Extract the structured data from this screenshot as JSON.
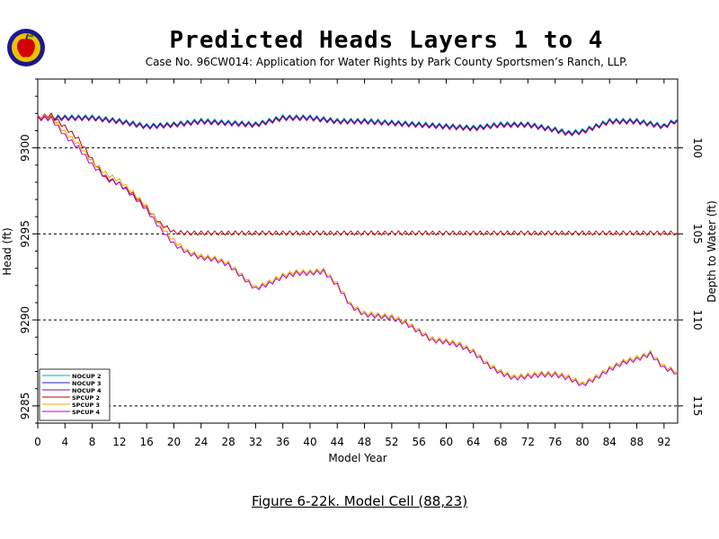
{
  "header": {
    "title": "Predicted Heads Layers 1 to 4",
    "subtitle": "Case No. 96CW014: Application for Water Rights by Park County Sportsmen’s Ranch, LLP."
  },
  "caption": "Figure 6-22k.  Model Cell (88,23)",
  "logo": {
    "icon": "apple-logo-icon",
    "ring_color": "#1a1a8c",
    "fill_color": "#f2c200",
    "apple_color": "#d40000"
  },
  "chart_data": {
    "type": "line",
    "xlabel": "Model Year",
    "ylabel": "Head (ft)",
    "y2label": "Depth to Water (ft)",
    "xlim": [
      0,
      94
    ],
    "ylim": [
      9284,
      9304
    ],
    "xticks": [
      0,
      4,
      8,
      12,
      16,
      20,
      24,
      28,
      32,
      36,
      40,
      44,
      48,
      52,
      56,
      60,
      64,
      68,
      72,
      76,
      80,
      84,
      88,
      92
    ],
    "yticks": [
      9285,
      9290,
      9295,
      9300
    ],
    "y2ticks": [
      {
        "head": 9300,
        "label": "100"
      },
      {
        "head": 9295,
        "label": "105"
      },
      {
        "head": 9290,
        "label": "110"
      },
      {
        "head": 9285,
        "label": "115"
      }
    ],
    "reference_lines": [
      9285,
      9290,
      9295,
      9300
    ],
    "legend_position": "bottom-left",
    "series": [
      {
        "name": "NOCUP 2",
        "color": "#00b0b0",
        "x": [
          0,
          2,
          4,
          8,
          12,
          16,
          20,
          24,
          28,
          32,
          36,
          40,
          44,
          48,
          52,
          56,
          60,
          64,
          68,
          72,
          76,
          78,
          80,
          84,
          88,
          92,
          94
        ],
        "y": [
          9301.8,
          9301.8,
          9301.8,
          9301.8,
          9301.6,
          9301.3,
          9301.4,
          9301.6,
          9301.5,
          9301.4,
          9301.8,
          9301.8,
          9301.6,
          9301.6,
          9301.5,
          9301.4,
          9301.3,
          9301.2,
          9301.4,
          9301.4,
          9301.1,
          9300.9,
          9301.0,
          9301.6,
          9301.6,
          9301.3,
          9301.7
        ]
      },
      {
        "name": "NOCUP 3",
        "color": "#2020c0",
        "x": [
          0,
          2,
          4,
          8,
          12,
          16,
          20,
          24,
          28,
          32,
          36,
          40,
          44,
          48,
          52,
          56,
          60,
          64,
          68,
          72,
          76,
          78,
          80,
          84,
          88,
          92,
          94
        ],
        "y": [
          9301.75,
          9301.75,
          9301.75,
          9301.75,
          9301.55,
          9301.25,
          9301.35,
          9301.55,
          9301.45,
          9301.35,
          9301.75,
          9301.75,
          9301.55,
          9301.55,
          9301.45,
          9301.35,
          9301.25,
          9301.15,
          9301.35,
          9301.35,
          9301.05,
          9300.85,
          9300.95,
          9301.55,
          9301.55,
          9301.25,
          9301.65
        ]
      },
      {
        "name": "NOCUP 4",
        "color": "#a0007a",
        "x": [
          0,
          2,
          4,
          8,
          12,
          16,
          20,
          24,
          28,
          32,
          36,
          40,
          44,
          48,
          52,
          56,
          60,
          64,
          68,
          72,
          76,
          78,
          80,
          84,
          88,
          92,
          94
        ],
        "y": [
          9301.7,
          9301.7,
          9301.7,
          9301.7,
          9301.5,
          9301.2,
          9301.3,
          9301.5,
          9301.4,
          9301.3,
          9301.7,
          9301.7,
          9301.5,
          9301.5,
          9301.4,
          9301.3,
          9301.2,
          9301.1,
          9301.3,
          9301.3,
          9301.0,
          9300.8,
          9300.9,
          9301.5,
          9301.5,
          9301.2,
          9301.6
        ]
      },
      {
        "name": "SPCUP 2",
        "color": "#c00000",
        "x": [
          0,
          2,
          4,
          6,
          8,
          10,
          12,
          14,
          16,
          18,
          20,
          22,
          30,
          40,
          50,
          60,
          70,
          80,
          90,
          94
        ],
        "y": [
          9301.8,
          9301.9,
          9301.2,
          9300.5,
          9299.3,
          9298.2,
          9297.9,
          9297.3,
          9296.5,
          9295.6,
          9295.1,
          9295.05,
          9295.05,
          9295.05,
          9295.05,
          9295.05,
          9295.05,
          9295.05,
          9295.05,
          9295.05
        ]
      },
      {
        "name": "SPCUP 3",
        "color": "#e8a800",
        "x": [
          0,
          2,
          4,
          6,
          8,
          10,
          12,
          14,
          16,
          18,
          20,
          22,
          24,
          26,
          28,
          30,
          32,
          34,
          36,
          38,
          40,
          42,
          44,
          46,
          48,
          50,
          52,
          54,
          56,
          58,
          60,
          62,
          64,
          66,
          68,
          70,
          72,
          74,
          76,
          78,
          80,
          82,
          84,
          86,
          88,
          90,
          92,
          94
        ],
        "y": [
          9301.8,
          9301.8,
          9300.9,
          9300.2,
          9299.2,
          9298.5,
          9298.1,
          9297.4,
          9296.6,
          9295.5,
          9294.6,
          9294.0,
          9293.7,
          9293.6,
          9293.3,
          9292.6,
          9291.9,
          9292.2,
          9292.6,
          9292.8,
          9292.8,
          9292.9,
          9292.1,
          9290.9,
          9290.4,
          9290.3,
          9290.2,
          9289.9,
          9289.4,
          9288.9,
          9288.8,
          9288.6,
          9288.2,
          9287.5,
          9287.0,
          9286.7,
          9286.8,
          9286.9,
          9286.9,
          9286.7,
          9286.3,
          9286.7,
          9287.2,
          9287.6,
          9287.8,
          9288.1,
          9287.3,
          9287.0
        ]
      },
      {
        "name": "SPCUP 4",
        "color": "#b800b8",
        "x": [
          0,
          2,
          4,
          6,
          8,
          10,
          12,
          14,
          16,
          18,
          20,
          22,
          24,
          26,
          28,
          30,
          32,
          34,
          36,
          38,
          40,
          42,
          44,
          46,
          48,
          50,
          52,
          54,
          56,
          58,
          60,
          62,
          64,
          66,
          68,
          70,
          72,
          74,
          76,
          78,
          80,
          82,
          84,
          86,
          88,
          90,
          92,
          94
        ],
        "y": [
          9301.75,
          9301.7,
          9300.7,
          9300.0,
          9299.0,
          9298.3,
          9297.9,
          9297.2,
          9296.4,
          9295.3,
          9294.4,
          9293.9,
          9293.6,
          9293.5,
          9293.2,
          9292.5,
          9291.8,
          9292.1,
          9292.5,
          9292.7,
          9292.7,
          9292.8,
          9292.0,
          9290.8,
          9290.3,
          9290.2,
          9290.1,
          9289.8,
          9289.3,
          9288.8,
          9288.7,
          9288.5,
          9288.1,
          9287.4,
          9286.9,
          9286.6,
          9286.7,
          9286.8,
          9286.8,
          9286.6,
          9286.2,
          9286.6,
          9287.1,
          9287.5,
          9287.7,
          9288.0,
          9287.2,
          9286.9
        ]
      }
    ]
  }
}
